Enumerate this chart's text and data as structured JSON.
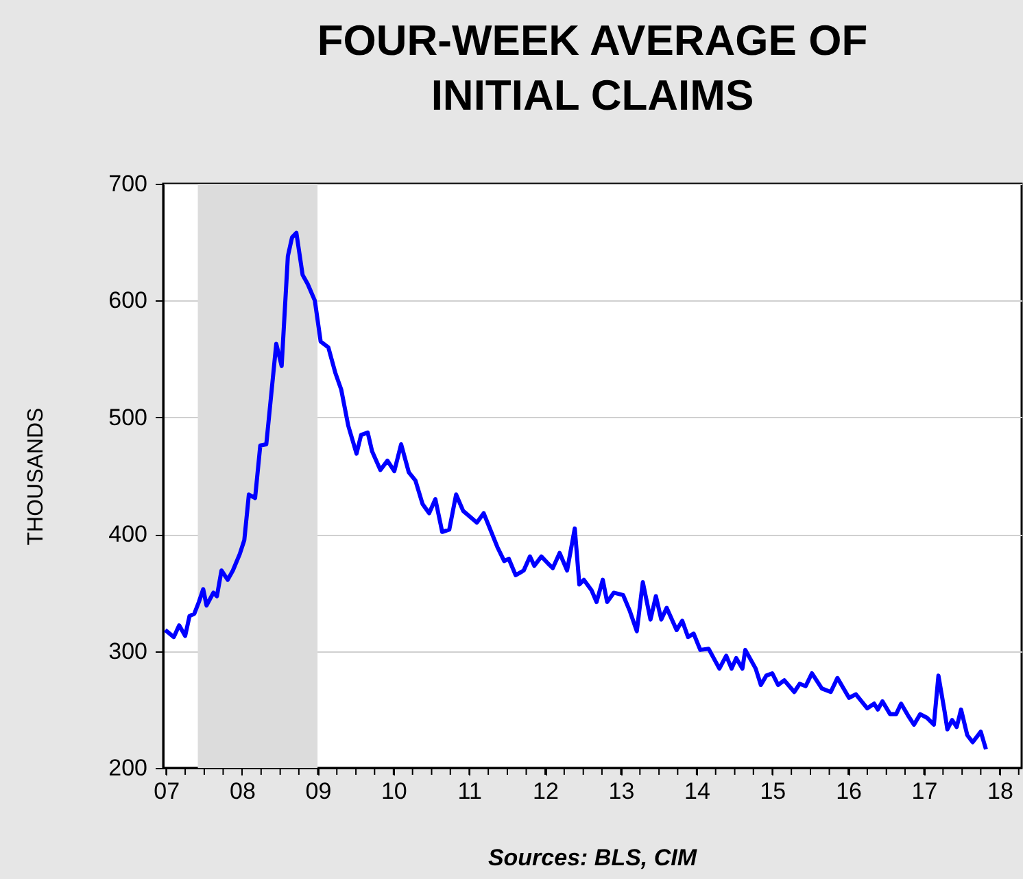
{
  "chart_data": {
    "type": "line",
    "title": "FOUR-WEEK AVERAGE OF\nINITIAL CLAIMS",
    "ylabel": "THOUSANDS",
    "annotations": [
      "Sources:  BLS, CIM"
    ],
    "x": [
      "2007-06-27",
      "2007-08-07",
      "2007-09-02",
      "2007-10-01",
      "2007-10-22",
      "2007-11-14",
      "2007-12-06",
      "2007-12-27",
      "2008-01-12",
      "2008-02-14",
      "2008-03-02",
      "2008-03-24",
      "2008-04-23",
      "2008-05-18",
      "2008-06-20",
      "2008-07-12",
      "2008-08-03",
      "2008-09-02",
      "2008-09-27",
      "2008-10-26",
      "2008-12-13",
      "2009-01-08",
      "2009-02-07",
      "2009-02-27",
      "2009-03-20",
      "2009-04-19",
      "2009-05-14",
      "2009-06-17",
      "2009-07-15",
      "2009-08-21",
      "2009-09-24",
      "2009-10-22",
      "2009-11-25",
      "2010-01-04",
      "2010-01-26",
      "2010-02-27",
      "2010-03-20",
      "2010-04-29",
      "2010-06-02",
      "2010-07-05",
      "2010-08-07",
      "2010-09-13",
      "2010-10-15",
      "2010-11-18",
      "2010-12-20",
      "2011-01-19",
      "2011-02-21",
      "2011-03-27",
      "2011-04-29",
      "2011-06-02",
      "2011-08-07",
      "2011-09-09",
      "2011-11-14",
      "2011-12-17",
      "2012-01-08",
      "2012-02-10",
      "2012-03-20",
      "2012-04-19",
      "2012-05-10",
      "2012-06-13",
      "2012-07-15",
      "2012-08-07",
      "2012-09-09",
      "2012-10-15",
      "2012-11-21",
      "2012-12-13",
      "2013-01-04",
      "2013-02-10",
      "2013-03-06",
      "2013-04-05",
      "2013-04-26",
      "2013-05-28",
      "2013-07-12",
      "2013-08-14",
      "2013-09-16",
      "2013-10-15",
      "2013-11-21",
      "2013-12-17",
      "2014-01-12",
      "2014-02-07",
      "2014-03-27",
      "2014-04-23",
      "2014-05-21",
      "2014-06-17",
      "2014-07-19",
      "2014-08-28",
      "2014-10-19",
      "2014-11-21",
      "2014-12-17",
      "2015-01-08",
      "2015-02-07",
      "2015-02-21",
      "2015-04-12",
      "2015-05-07",
      "2015-06-02",
      "2015-07-01",
      "2015-07-29",
      "2015-08-28",
      "2015-10-15",
      "2015-11-10",
      "2015-12-09",
      "2016-01-08",
      "2016-02-25",
      "2016-04-08",
      "2016-05-10",
      "2016-07-05",
      "2016-08-07",
      "2016-10-01",
      "2016-11-03",
      "2016-11-21",
      "2016-12-13",
      "2017-01-19",
      "2017-02-17",
      "2017-03-13",
      "2017-04-15",
      "2017-05-14",
      "2017-06-13",
      "2017-07-15",
      "2017-08-18",
      "2017-09-09",
      "2017-10-08",
      "2017-10-22",
      "2017-11-14",
      "2017-12-06",
      "2017-12-27",
      "2018-01-26",
      "2018-02-21",
      "2018-04-01",
      "2018-04-26"
    ],
    "series": [
      {
        "color": "#0000ff",
        "values": [
          318,
          312,
          322,
          313,
          330,
          332,
          342,
          353,
          339,
          350,
          347,
          369,
          361,
          369,
          383,
          395,
          434,
          431,
          476,
          477,
          563,
          544,
          638,
          654,
          658,
          622,
          614,
          600,
          565,
          560,
          538,
          524,
          493,
          469,
          485,
          487,
          471,
          455,
          463,
          454,
          477,
          453,
          446,
          426,
          418,
          430,
          402,
          404,
          434,
          420,
          410,
          418,
          389,
          377,
          379,
          365,
          369,
          381,
          373,
          381,
          375,
          371,
          384,
          369,
          405,
          357,
          361,
          352,
          342,
          361,
          342,
          350,
          348,
          334,
          317,
          359,
          327,
          347,
          327,
          337,
          318,
          326,
          312,
          315,
          301,
          302,
          285,
          296,
          285,
          294,
          285,
          301,
          285,
          271,
          279,
          281,
          271,
          275,
          265,
          272,
          270,
          281,
          268,
          265,
          277,
          260,
          263,
          251,
          255,
          250,
          257,
          246,
          246,
          255,
          245,
          237,
          246,
          243,
          237,
          279,
          249,
          233,
          241,
          235,
          250,
          228,
          222,
          231,
          216
        ]
      }
    ],
    "xlim": [
      "2007-06-17",
      "2018-10-15"
    ],
    "xticks": [
      {
        "value": "2007-07-01",
        "label": "07"
      },
      {
        "value": "2007-10-01",
        "label": null
      },
      {
        "value": "2008-01-01",
        "label": null
      },
      {
        "value": "2008-04-01",
        "label": null
      },
      {
        "value": "2008-07-01",
        "label": "08"
      },
      {
        "value": "2008-10-01",
        "label": null
      },
      {
        "value": "2009-01-01",
        "label": null
      },
      {
        "value": "2009-04-01",
        "label": null
      },
      {
        "value": "2009-07-01",
        "label": "09"
      },
      {
        "value": "2009-10-01",
        "label": null
      },
      {
        "value": "2010-01-01",
        "label": null
      },
      {
        "value": "2010-04-01",
        "label": null
      },
      {
        "value": "2010-07-01",
        "label": "10"
      },
      {
        "value": "2010-10-01",
        "label": null
      },
      {
        "value": "2011-01-01",
        "label": null
      },
      {
        "value": "2011-04-01",
        "label": null
      },
      {
        "value": "2011-07-01",
        "label": "11"
      },
      {
        "value": "2011-10-01",
        "label": null
      },
      {
        "value": "2012-01-01",
        "label": null
      },
      {
        "value": "2012-04-01",
        "label": null
      },
      {
        "value": "2012-07-01",
        "label": "12"
      },
      {
        "value": "2012-10-01",
        "label": null
      },
      {
        "value": "2013-01-01",
        "label": null
      },
      {
        "value": "2013-04-01",
        "label": null
      },
      {
        "value": "2013-07-01",
        "label": "13"
      },
      {
        "value": "2013-10-01",
        "label": null
      },
      {
        "value": "2014-01-01",
        "label": null
      },
      {
        "value": "2014-04-01",
        "label": null
      },
      {
        "value": "2014-07-01",
        "label": "14"
      },
      {
        "value": "2014-10-01",
        "label": null
      },
      {
        "value": "2015-01-01",
        "label": null
      },
      {
        "value": "2015-04-01",
        "label": null
      },
      {
        "value": "2015-07-01",
        "label": "15"
      },
      {
        "value": "2015-10-01",
        "label": null
      },
      {
        "value": "2016-01-01",
        "label": null
      },
      {
        "value": "2016-04-01",
        "label": null
      },
      {
        "value": "2016-07-01",
        "label": "16"
      },
      {
        "value": "2016-10-01",
        "label": null
      },
      {
        "value": "2017-01-01",
        "label": null
      },
      {
        "value": "2017-04-01",
        "label": null
      },
      {
        "value": "2017-07-01",
        "label": "17"
      },
      {
        "value": "2017-10-01",
        "label": null
      },
      {
        "value": "2018-01-01",
        "label": null
      },
      {
        "value": "2018-04-01",
        "label": null
      },
      {
        "value": "2018-07-01",
        "label": "18"
      },
      {
        "value": "2018-10-01",
        "label": null
      }
    ],
    "ylim": [
      200,
      700
    ],
    "yticks": [
      200,
      300,
      400,
      500,
      600,
      700
    ],
    "grid": "y",
    "bands": [
      {
        "axis": "x",
        "from": "2007-12-01",
        "to": "2009-06-30",
        "color": "#dcdcdc"
      }
    ]
  }
}
